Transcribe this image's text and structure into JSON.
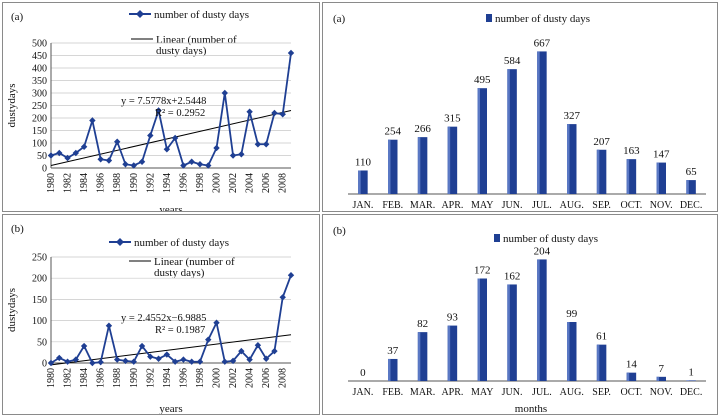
{
  "chart_data": [
    {
      "id": "tl",
      "type": "line",
      "panel_label": "(a)",
      "legend_series": "number of dusty days",
      "legend_trend": [
        "Linear (number of",
        "dusty days)"
      ],
      "ylabel": "dustydays",
      "xlabel": "years",
      "ylim": [
        0,
        500
      ],
      "yticks": [
        "0",
        "50",
        "100",
        "150",
        "200",
        "250",
        "300",
        "350",
        "400",
        "450",
        "500"
      ],
      "xtick_labels": [
        "1980",
        "1982",
        "1984",
        "1986",
        "1988",
        "1990",
        "1992",
        "1994",
        "1996",
        "1998",
        "2000",
        "2002",
        "2004",
        "2006",
        "2008"
      ],
      "x": [
        1980,
        1981,
        1982,
        1983,
        1984,
        1985,
        1986,
        1987,
        1988,
        1989,
        1990,
        1991,
        1992,
        1993,
        1994,
        1995,
        1996,
        1997,
        1998,
        1999,
        2000,
        2001,
        2002,
        2003,
        2004,
        2005,
        2006,
        2007,
        2008,
        2009
      ],
      "values": [
        50,
        60,
        40,
        60,
        85,
        190,
        35,
        30,
        105,
        15,
        10,
        25,
        130,
        230,
        75,
        120,
        10,
        25,
        15,
        10,
        80,
        300,
        50,
        55,
        225,
        95,
        95,
        220,
        215,
        460
      ],
      "trend": {
        "slope": 7.5778,
        "intercept": 2.5448
      },
      "equation": "y = 7.5778x+2.5448",
      "r2": "R² = 0.2952"
    },
    {
      "id": "tr",
      "type": "bar",
      "panel_label": "(a)",
      "legend_series": "number of dusty days",
      "categories": [
        "JAN.",
        "FEB.",
        "MAR.",
        "APR.",
        "MAY",
        "JUN.",
        "JUL.",
        "AUG.",
        "SEP.",
        "OCT.",
        "NOV.",
        "DEC."
      ],
      "values": [
        110,
        254,
        266,
        315,
        495,
        584,
        667,
        327,
        207,
        163,
        147,
        65
      ],
      "ylim": [
        0,
        800
      ]
    },
    {
      "id": "bl",
      "type": "line",
      "panel_label": "(b)",
      "legend_series": "number of dusty days",
      "legend_trend": [
        "Linear (number of",
        "dusty days)"
      ],
      "ylabel": "dustydays",
      "xlabel": "years",
      "ylim": [
        0,
        250
      ],
      "yticks": [
        "0",
        "50",
        "100",
        "150",
        "200",
        "250"
      ],
      "xtick_labels": [
        "1980",
        "1982",
        "1984",
        "1986",
        "1988",
        "1990",
        "1992",
        "1994",
        "1996",
        "1998",
        "2000",
        "2002",
        "2004",
        "2006",
        "2008"
      ],
      "x": [
        1980,
        1981,
        1982,
        1983,
        1984,
        1985,
        1986,
        1987,
        1988,
        1989,
        1990,
        1991,
        1992,
        1993,
        1994,
        1995,
        1996,
        1997,
        1998,
        1999,
        2000,
        2001,
        2002,
        2003,
        2004,
        2005,
        2006,
        2007,
        2008,
        2009
      ],
      "values": [
        0,
        12,
        3,
        8,
        40,
        0,
        2,
        88,
        8,
        5,
        3,
        40,
        15,
        10,
        20,
        3,
        8,
        3,
        3,
        55,
        95,
        3,
        5,
        28,
        8,
        42,
        10,
        28,
        155,
        207
      ],
      "trend": {
        "slope": 2.4552,
        "intercept": -6.9885
      },
      "equation": "y = 2.4552x−6.9885",
      "r2": "R² = 0.1987"
    },
    {
      "id": "br",
      "type": "bar",
      "panel_label": "(b)",
      "legend_series": "number of dusty days",
      "xlabel": "months",
      "categories": [
        "JAN.",
        "FEB.",
        "MAR.",
        "APR.",
        "MAY",
        "JUN.",
        "JUL.",
        "AUG.",
        "SEP.",
        "OCT.",
        "NOV.",
        "DEC."
      ],
      "values": [
        0,
        37,
        82,
        93,
        172,
        162,
        204,
        99,
        61,
        14,
        7,
        1
      ],
      "ylim": [
        0,
        245
      ]
    }
  ]
}
